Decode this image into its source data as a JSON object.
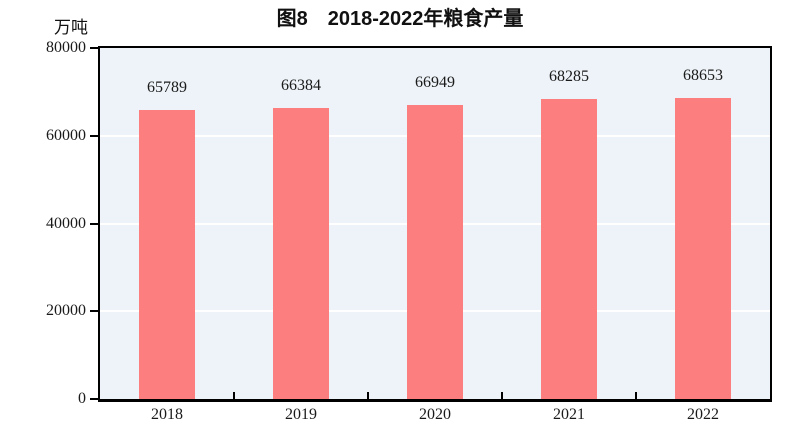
{
  "title": "图8　2018-2022年粮食产量",
  "unit_label": "万吨",
  "chart_data": {
    "type": "bar",
    "title": "图8　2018-2022年粮食产量",
    "categories": [
      "2018",
      "2019",
      "2020",
      "2021",
      "2022"
    ],
    "values": [
      65789,
      66384,
      66949,
      68285,
      68653
    ],
    "data_labels": [
      "65789",
      "66384",
      "66949",
      "68285",
      "68653"
    ],
    "xlabel": "",
    "ylabel": "万吨",
    "ylim": [
      0,
      80000
    ],
    "yticks": [
      0,
      20000,
      40000,
      60000,
      80000
    ],
    "grid": "horizontal-white-lines",
    "legend": "none",
    "bar_color": "#FC7E7E",
    "plot_bg_color": "#EDF3F8",
    "gridline_color": "#FFFFFF",
    "axis_color": "#000000",
    "text_color": "#1A1A1A"
  }
}
